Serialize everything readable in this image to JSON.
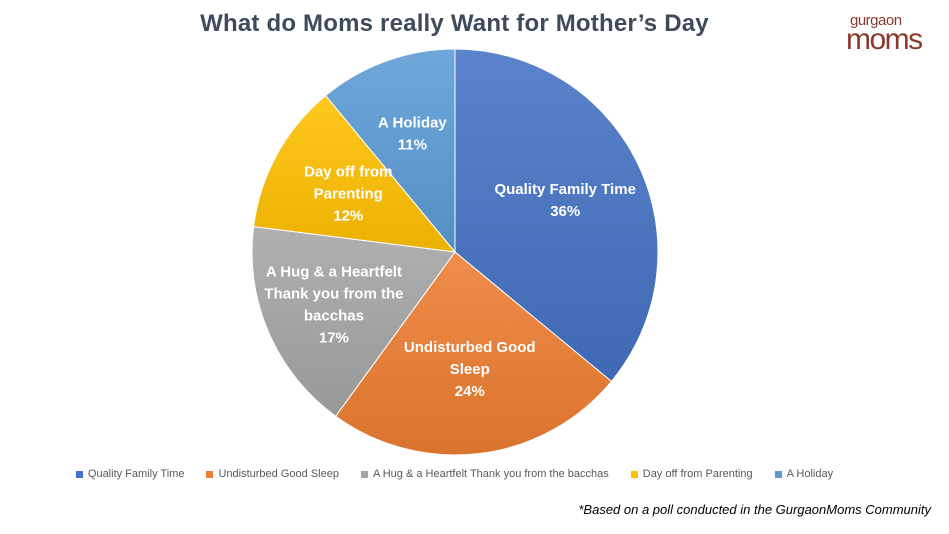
{
  "title": "What do Moms really Want for Mother’s Day",
  "logo": {
    "line1": "gurgaon",
    "line2": "moms"
  },
  "footnote": "*Based on a poll conducted in  the GurgaonMoms Community",
  "chart_data": {
    "type": "pie",
    "title": "What do Moms really Want for Mother’s Day",
    "legend_position": "bottom",
    "slices": [
      {
        "label_lines": [
          "Quality Family Time"
        ],
        "legend": "Quality Family Time",
        "value": 36,
        "value_label": "36%",
        "color": "#4472c4"
      },
      {
        "label_lines": [
          "Undisturbed Good",
          "Sleep"
        ],
        "legend": "Undisturbed Good Sleep",
        "value": 24,
        "value_label": "24%",
        "color": "#ed7d31"
      },
      {
        "label_lines": [
          "A Hug & a Heartfelt",
          "Thank you from the",
          "bacchas"
        ],
        "legend": "A Hug & a Heartfelt Thank you from the bacchas",
        "value": 17,
        "value_label": "17%",
        "color": "#a5a5a5"
      },
      {
        "label_lines": [
          "Day off from",
          "Parenting"
        ],
        "legend": "Day off from Parenting",
        "value": 12,
        "value_label": "12%",
        "color": "#ffc000"
      },
      {
        "label_lines": [
          "A Holiday"
        ],
        "legend": "A Holiday",
        "value": 11,
        "value_label": "11%",
        "color": "#5b9bd5"
      }
    ]
  }
}
